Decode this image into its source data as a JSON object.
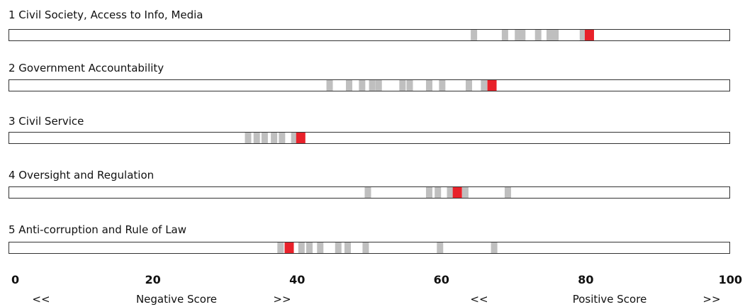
{
  "chart_data": {
    "type": "strip",
    "title": "",
    "xlabel": "",
    "ylabel": "",
    "xlim": [
      0,
      100
    ],
    "xticks": [
      0,
      20,
      40,
      60,
      80,
      100
    ],
    "gridlines": false,
    "colors": {
      "others": "#bfbfbf",
      "highlight": "#e8212a",
      "border": "#333333"
    },
    "categories": [
      {
        "name": "1 Civil Society, Access to Info, Media",
        "others": [
          64.5,
          68.8,
          70.6,
          71.2,
          73.4,
          75.0,
          75.8,
          79.6
        ],
        "highlight": 80.5
      },
      {
        "name": "2 Government Accountability",
        "others": [
          44.5,
          47.2,
          49.0,
          50.4,
          51.3,
          54.6,
          55.6,
          58.3,
          60.1,
          63.8,
          65.9
        ],
        "highlight": 67.0
      },
      {
        "name": "3 Civil Service",
        "others": [
          33.2,
          34.4,
          35.5,
          36.8,
          37.9,
          39.6
        ],
        "highlight": 40.5
      },
      {
        "name": "4 Oversight and Regulation",
        "others": [
          49.8,
          58.3,
          59.5,
          61.2,
          63.3,
          69.2
        ],
        "highlight": 62.2
      },
      {
        "name": "5 Anti-corruption and Rule of Law",
        "others": [
          37.7,
          40.6,
          41.7,
          43.2,
          45.7,
          47.0,
          49.5,
          59.8,
          67.3
        ],
        "highlight": 38.9
      }
    ],
    "annotations": [
      {
        "start": "<<",
        "label": "Negative Score",
        "end": ">>"
      },
      {
        "start": "<<",
        "label": "Positive Score",
        "end": ">>"
      }
    ]
  }
}
